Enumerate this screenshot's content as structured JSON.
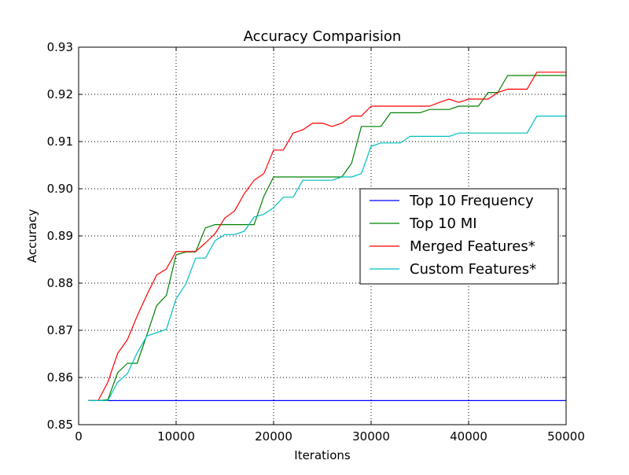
{
  "chart_data": {
    "type": "line",
    "title": "Accuracy Comparision",
    "xlabel": "Iterations",
    "ylabel": "Accuracy",
    "xlim": [
      0,
      50000
    ],
    "ylim": [
      0.85,
      0.93
    ],
    "xticks": [
      0,
      10000,
      20000,
      30000,
      40000,
      50000
    ],
    "xtick_labels": [
      "0",
      "10000",
      "20000",
      "30000",
      "40000",
      "50000"
    ],
    "yticks": [
      0.85,
      0.86,
      0.87,
      0.88,
      0.89,
      0.9,
      0.91,
      0.92,
      0.93
    ],
    "ytick_labels": [
      "0.85",
      "0.86",
      "0.87",
      "0.88",
      "0.89",
      "0.90",
      "0.91",
      "0.92",
      "0.93"
    ],
    "grid": true,
    "legend_position": "center-right",
    "series": [
      {
        "name": "Top 10 Frequency",
        "color": "#0000ff",
        "x": [
          1000,
          50000
        ],
        "y": [
          0.8551,
          0.8551
        ]
      },
      {
        "name": "Top 10 MI",
        "color": "#008000",
        "x": [
          1000,
          2000,
          3000,
          4000,
          5000,
          6000,
          7000,
          8000,
          9000,
          10000,
          11000,
          12000,
          13000,
          14000,
          15000,
          16000,
          17000,
          18000,
          19000,
          20000,
          21000,
          22000,
          23000,
          24000,
          25000,
          26000,
          27000,
          28000,
          29000,
          30000,
          31000,
          32000,
          33000,
          34000,
          35000,
          36000,
          37000,
          38000,
          39000,
          40000,
          41000,
          42000,
          43000,
          44000,
          45000,
          46000,
          47000,
          48000,
          49000,
          50000
        ],
        "y": [
          0.8551,
          0.8551,
          0.8553,
          0.861,
          0.863,
          0.863,
          0.869,
          0.8752,
          0.8774,
          0.886,
          0.8866,
          0.8866,
          0.8917,
          0.8924,
          0.8924,
          0.8924,
          0.8924,
          0.8924,
          0.8984,
          0.9025,
          0.9025,
          0.9025,
          0.9025,
          0.9025,
          0.9025,
          0.9025,
          0.9025,
          0.9054,
          0.9132,
          0.9132,
          0.9132,
          0.9161,
          0.9161,
          0.9161,
          0.9161,
          0.9168,
          0.9168,
          0.9168,
          0.9175,
          0.9175,
          0.9175,
          0.9204,
          0.9204,
          0.924,
          0.924,
          0.924,
          0.924,
          0.924,
          0.924,
          0.924
        ]
      },
      {
        "name": "Merged Features*",
        "color": "#ff0000",
        "x": [
          1000,
          2000,
          3000,
          4000,
          5000,
          6000,
          7000,
          8000,
          9000,
          10000,
          11000,
          12000,
          13000,
          14000,
          15000,
          16000,
          17000,
          18000,
          19000,
          20000,
          21000,
          22000,
          23000,
          24000,
          25000,
          26000,
          27000,
          28000,
          29000,
          30000,
          31000,
          32000,
          33000,
          34000,
          35000,
          36000,
          37000,
          38000,
          39000,
          40000,
          41000,
          42000,
          43000,
          44000,
          45000,
          46000,
          47000,
          48000,
          49000,
          50000
        ],
        "y": [
          0.8551,
          0.8551,
          0.859,
          0.8651,
          0.868,
          0.873,
          0.8775,
          0.8817,
          0.883,
          0.8867,
          0.8867,
          0.8867,
          0.8885,
          0.8905,
          0.8938,
          0.8953,
          0.899,
          0.9018,
          0.9032,
          0.9082,
          0.9082,
          0.9118,
          0.9125,
          0.9139,
          0.9139,
          0.9132,
          0.9139,
          0.9154,
          0.9154,
          0.9175,
          0.9175,
          0.9175,
          0.9175,
          0.9175,
          0.9175,
          0.9175,
          0.9183,
          0.919,
          0.9183,
          0.919,
          0.919,
          0.919,
          0.9204,
          0.9211,
          0.9211,
          0.9211,
          0.9247,
          0.9247,
          0.9247,
          0.9247
        ]
      },
      {
        "name": "Custom Features*",
        "color": "#00bfbf",
        "x": [
          1000,
          2000,
          3000,
          4000,
          5000,
          6000,
          7000,
          8000,
          9000,
          10000,
          11000,
          12000,
          13000,
          14000,
          15000,
          16000,
          17000,
          18000,
          19000,
          20000,
          21000,
          22000,
          23000,
          24000,
          25000,
          26000,
          27000,
          28000,
          29000,
          30000,
          31000,
          32000,
          33000,
          34000,
          35000,
          36000,
          37000,
          38000,
          39000,
          40000,
          41000,
          42000,
          43000,
          44000,
          45000,
          46000,
          47000,
          48000,
          49000,
          50000
        ],
        "y": [
          0.8551,
          0.8551,
          0.8551,
          0.859,
          0.8608,
          0.8652,
          0.8688,
          0.8695,
          0.8702,
          0.8767,
          0.8798,
          0.8853,
          0.8853,
          0.889,
          0.8903,
          0.8903,
          0.891,
          0.894,
          0.8946,
          0.896,
          0.8982,
          0.8982,
          0.9018,
          0.9018,
          0.9018,
          0.9018,
          0.9025,
          0.9025,
          0.9032,
          0.909,
          0.9097,
          0.9097,
          0.9097,
          0.9111,
          0.9111,
          0.9111,
          0.9111,
          0.9111,
          0.9118,
          0.9118,
          0.9118,
          0.9118,
          0.9118,
          0.9118,
          0.9118,
          0.9118,
          0.9154,
          0.9154,
          0.9154,
          0.9154
        ]
      }
    ]
  }
}
